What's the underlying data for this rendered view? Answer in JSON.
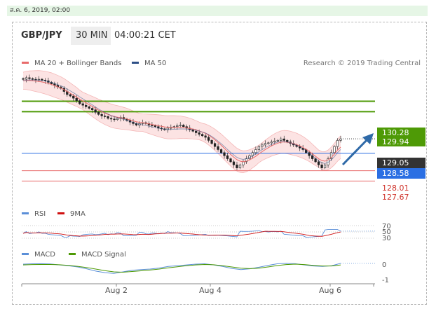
{
  "datetime": "ส.ค. 6, 2019, 02:00",
  "header": {
    "symbol": "GBP/JPY",
    "interval": "30 MIN",
    "time": "04:00:21 CET"
  },
  "legend": {
    "ma20": "MA 20 + Bollinger Bands",
    "ma50": "MA 50",
    "credit": "Research © 2019 Trading Central"
  },
  "colors": {
    "green": "#4e9a06",
    "blue": "#2b6fe3",
    "red": "#e86b6b",
    "dark": "#333333",
    "arrow": "#2f6aa8"
  },
  "chart_data": [
    {
      "type": "candlestick",
      "title": "",
      "x_ticks": [
        "Aug 2",
        "Aug 4",
        "Aug 6"
      ],
      "ylim": [
        126.9,
        131.3
      ],
      "resistance": [
        130.28,
        129.94
      ],
      "pivot": 129.05,
      "support": [
        128.58,
        128.01,
        127.67
      ],
      "labels": {
        "r1": "130.28",
        "r2": "129.94",
        "pivot": "129.05",
        "s1": "128.58",
        "s2": "128.01",
        "s3": "127.67"
      },
      "close": [
        131.0,
        131.05,
        131.02,
        131.0,
        130.98,
        131.0,
        130.97,
        130.95,
        130.9,
        130.85,
        130.8,
        130.75,
        130.7,
        130.6,
        130.5,
        130.45,
        130.38,
        130.3,
        130.2,
        130.15,
        130.1,
        130.05,
        130.0,
        129.92,
        129.85,
        129.8,
        129.78,
        129.72,
        129.7,
        129.68,
        129.72,
        129.75,
        129.7,
        129.65,
        129.6,
        129.55,
        129.5,
        129.55,
        129.58,
        129.55,
        129.5,
        129.48,
        129.45,
        129.4,
        129.38,
        129.35,
        129.4,
        129.42,
        129.45,
        129.48,
        129.5,
        129.45,
        129.4,
        129.35,
        129.3,
        129.25,
        129.2,
        129.15,
        129.1,
        129.0,
        128.9,
        128.8,
        128.7,
        128.6,
        128.5,
        128.4,
        128.3,
        128.2,
        128.1,
        128.2,
        128.3,
        128.4,
        128.5,
        128.6,
        128.7,
        128.8,
        128.85,
        128.9,
        128.92,
        128.95,
        128.98,
        129.0,
        129.05,
        129.0,
        128.95,
        128.9,
        128.85,
        128.8,
        128.75,
        128.7,
        128.6,
        128.5,
        128.4,
        128.3,
        128.2,
        128.1,
        128.2,
        128.4,
        128.6,
        128.8,
        129.0,
        129.05
      ],
      "ma": [
        130.95,
        130.96,
        130.96,
        130.95,
        130.94,
        130.93,
        130.91,
        130.89,
        130.86,
        130.83,
        130.79,
        130.75,
        130.71,
        130.66,
        130.6,
        130.54,
        130.48,
        130.42,
        130.35,
        130.29,
        130.23,
        130.17,
        130.11,
        130.05,
        129.99,
        129.94,
        129.89,
        129.85,
        129.81,
        129.78,
        129.76,
        129.74,
        129.72,
        129.7,
        129.67,
        129.64,
        129.61,
        129.59,
        129.58,
        129.56,
        129.54,
        129.52,
        129.5,
        129.48,
        129.46,
        129.44,
        129.43,
        129.43,
        129.43,
        129.43,
        129.43,
        129.42,
        129.41,
        129.39,
        129.37,
        129.34,
        129.31,
        129.27,
        129.23,
        129.17,
        129.1,
        129.02,
        128.93,
        128.84,
        128.74,
        128.64,
        128.54,
        128.45,
        128.37,
        128.32,
        128.3,
        128.32,
        128.36,
        128.42,
        128.48,
        128.56,
        128.63,
        128.7,
        128.76,
        128.82,
        128.87,
        128.91,
        128.94,
        128.95,
        128.94,
        128.92,
        128.89,
        128.86,
        128.82,
        128.77,
        128.71,
        128.64,
        128.56,
        128.48,
        128.4,
        128.34,
        128.32,
        128.36,
        128.44,
        128.55,
        128.68,
        128.78
      ]
    },
    {
      "type": "line",
      "title": "",
      "series": [
        {
          "name": "RSI"
        },
        {
          "name": "9MA"
        }
      ],
      "levels": [
        70,
        30,
        50
      ],
      "labels": {
        "upper": "70",
        "lower": "30",
        "mid": "50"
      }
    },
    {
      "type": "line",
      "title": "",
      "series": [
        {
          "name": "MACD"
        },
        {
          "name": "MACD Signal"
        }
      ],
      "yticks": [
        "0",
        "-1"
      ],
      "macd": [
        0.0,
        0.02,
        0.03,
        0.01,
        -0.05,
        -0.1,
        -0.18,
        -0.3,
        -0.45,
        -0.55,
        -0.6,
        -0.5,
        -0.4,
        -0.35,
        -0.32,
        -0.25,
        -0.15,
        -0.1,
        -0.05,
        0.0,
        0.02,
        -0.05,
        -0.15,
        -0.28,
        -0.35,
        -0.3,
        -0.2,
        -0.08,
        0.02,
        0.05,
        0.03,
        -0.05,
        -0.12,
        -0.15,
        -0.1,
        0.05
      ],
      "signal": [
        -0.05,
        -0.03,
        -0.02,
        -0.02,
        -0.04,
        -0.08,
        -0.14,
        -0.22,
        -0.32,
        -0.42,
        -0.5,
        -0.52,
        -0.48,
        -0.43,
        -0.38,
        -0.32,
        -0.24,
        -0.17,
        -0.1,
        -0.05,
        -0.02,
        -0.04,
        -0.1,
        -0.18,
        -0.26,
        -0.29,
        -0.26,
        -0.18,
        -0.09,
        -0.03,
        0.0,
        -0.03,
        -0.08,
        -0.12,
        -0.12,
        -0.05
      ]
    }
  ]
}
